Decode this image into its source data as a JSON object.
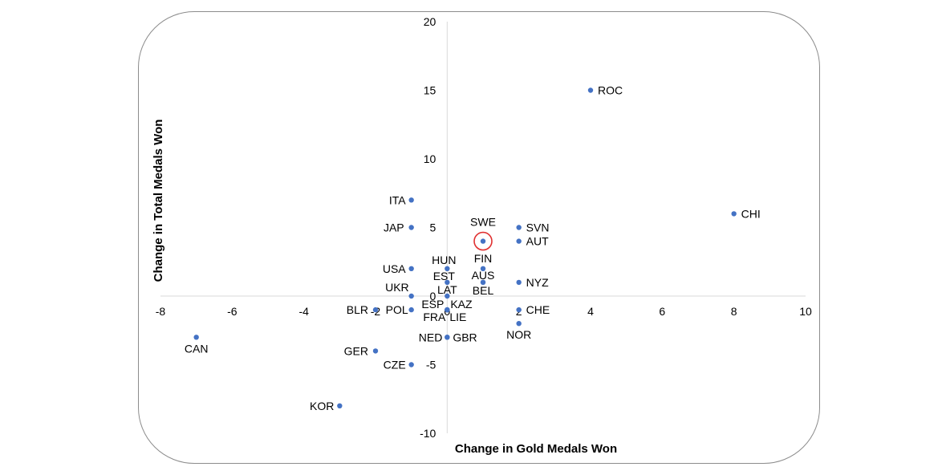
{
  "chart_data": {
    "type": "scatter",
    "title": "",
    "xlabel": "Change in Gold Medals Won",
    "ylabel": "Change in Total Medals Won",
    "xlim": [
      -8,
      10
    ],
    "ylim": [
      -10,
      20
    ],
    "xticks": [
      -8,
      -6,
      -4,
      -2,
      0,
      2,
      4,
      6,
      8,
      10
    ],
    "yticks": [
      -10,
      -5,
      0,
      5,
      10,
      15,
      20
    ],
    "highlight_color": "#e03030",
    "marker_color": "#4472c4",
    "points": [
      {
        "label": "ROC",
        "x": 4,
        "y": 15
      },
      {
        "label": "CHI",
        "x": 8,
        "y": 6
      },
      {
        "label": "ITA",
        "x": -1,
        "y": 7
      },
      {
        "label": "JAP",
        "x": -1,
        "y": 5
      },
      {
        "label": "USA",
        "x": -1,
        "y": 2
      },
      {
        "label": "UKR",
        "x": -1,
        "y": 0
      },
      {
        "label": "POL",
        "x": -1,
        "y": -1
      },
      {
        "label": "CZE",
        "x": -1,
        "y": -5
      },
      {
        "label": "BLR",
        "x": -2,
        "y": -1
      },
      {
        "label": "GER",
        "x": -2,
        "y": -4
      },
      {
        "label": "CAN",
        "x": -7,
        "y": -3
      },
      {
        "label": "KOR",
        "x": -3,
        "y": -8
      },
      {
        "label": "SWE",
        "x": 1,
        "y": 4,
        "highlight": true
      },
      {
        "label": "SVN",
        "x": 2,
        "y": 5
      },
      {
        "label": "AUT",
        "x": 2,
        "y": 4
      },
      {
        "label": "NYZ",
        "x": 2,
        "y": 1
      },
      {
        "label": "CHE",
        "x": 2,
        "y": -1
      },
      {
        "label": "NOR",
        "x": 2,
        "y": -2
      },
      {
        "label": "FIN",
        "x": 1,
        "y": 2
      },
      {
        "label": "AUS",
        "x": 1,
        "y": 1
      },
      {
        "label": "BEL",
        "x": 1,
        "y": 1
      },
      {
        "label": "HUN",
        "x": 0,
        "y": 2
      },
      {
        "label": "EST",
        "x": 0,
        "y": 1
      },
      {
        "label": "LAT",
        "x": 0,
        "y": 0
      },
      {
        "label": "ESP",
        "x": 0,
        "y": -1
      },
      {
        "label": "KAZ",
        "x": 0,
        "y": -1
      },
      {
        "label": "FRA",
        "x": 0,
        "y": -1
      },
      {
        "label": "LIE",
        "x": 0,
        "y": -1
      },
      {
        "label": "NED",
        "x": 0,
        "y": -3
      },
      {
        "label": "GBR",
        "x": 0,
        "y": -3
      }
    ]
  }
}
